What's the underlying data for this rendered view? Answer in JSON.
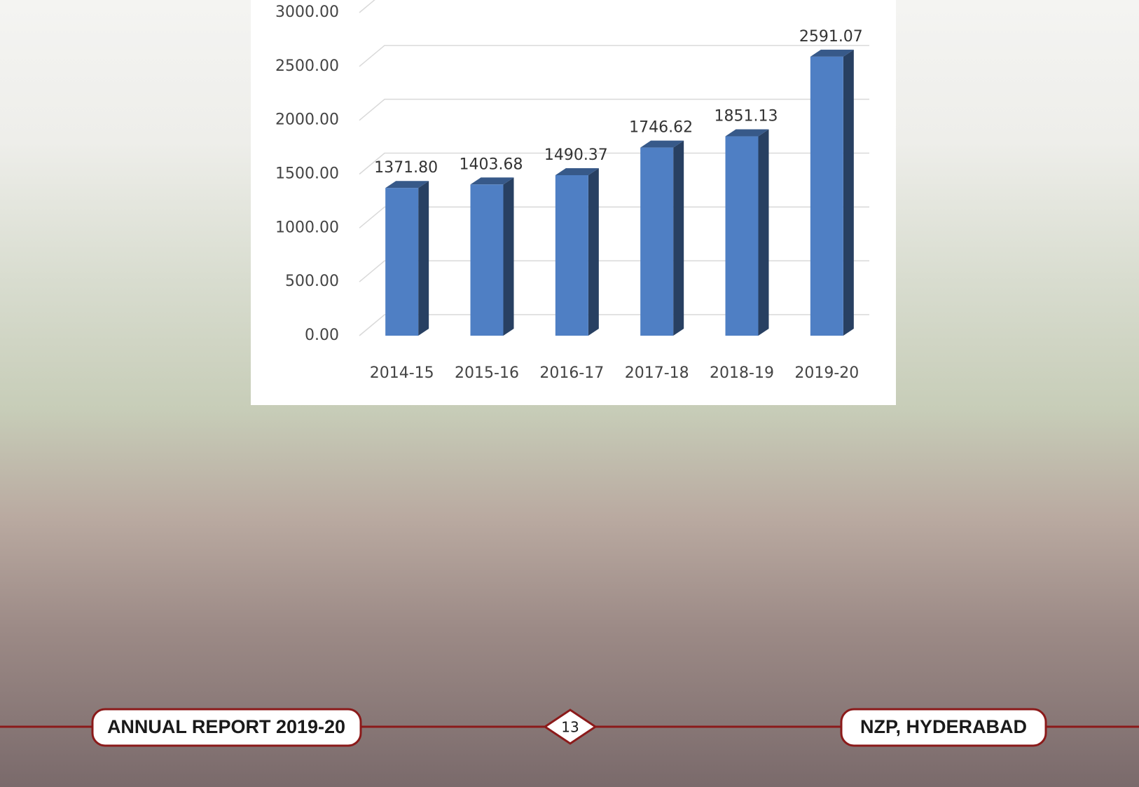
{
  "chart_data": {
    "type": "bar",
    "categories": [
      "2014-15",
      "2015-16",
      "2016-17",
      "2017-18",
      "2018-19",
      "2019-20"
    ],
    "values": [
      1371.8,
      1403.68,
      1490.37,
      1746.62,
      1851.13,
      2591.07
    ],
    "value_labels": [
      "1371.80",
      "1403.68",
      "1490.37",
      "1746.62",
      "1851.13",
      "2591.07"
    ],
    "color": "#4f7fc4",
    "ylim": [
      0,
      3000
    ],
    "yticks": [
      {
        "value": 0,
        "label": "0.00"
      },
      {
        "value": 500,
        "label": "500.00"
      },
      {
        "value": 1000,
        "label": "1000.00"
      },
      {
        "value": 1500,
        "label": "1500.00"
      },
      {
        "value": 2000,
        "label": "2000.00"
      },
      {
        "value": 2500,
        "label": "2500.00"
      },
      {
        "value": 3000,
        "label": "3000.00"
      }
    ],
    "grid": true
  },
  "footer": {
    "left": "ANNUAL REPORT 2019-20",
    "page": 13,
    "right": "NZP, HYDERABAD"
  }
}
